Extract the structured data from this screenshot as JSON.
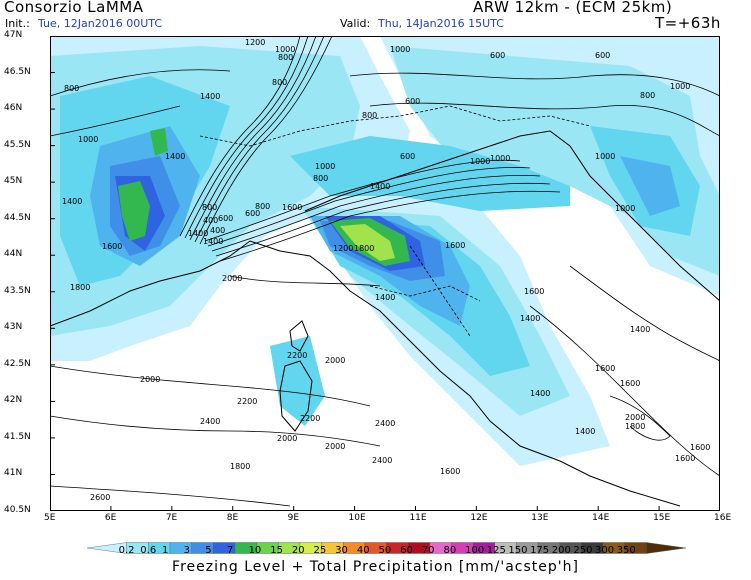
{
  "header": {
    "org": "Consorzio LaMMA",
    "model": "ARW 12km - (ECM 25km)",
    "init_label": "Init.:",
    "init_value": "Tue, 12Jan2016 00UTC",
    "valid_label": "Valid:",
    "valid_value": "Thu, 14Jan2016 15UTC",
    "lead": "T=+63h"
  },
  "axes": {
    "lon": [
      "5E",
      "6E",
      "7E",
      "8E",
      "9E",
      "10E",
      "11E",
      "12E",
      "13E",
      "14E",
      "15E",
      "16E"
    ],
    "lat": [
      "47N",
      "46.5N",
      "46N",
      "45.5N",
      "45N",
      "44.5N",
      "44N",
      "43.5N",
      "43N",
      "42.5N",
      "42N",
      "41.5N",
      "41N",
      "40.5N"
    ]
  },
  "contours": {
    "labels": [
      "1200",
      "1000",
      "800",
      "800",
      "1000",
      "800",
      "600",
      "600",
      "1000",
      "800",
      "1400",
      "600",
      "800",
      "1000",
      "1000",
      "1400",
      "800",
      "600",
      "1000",
      "1000",
      "1400",
      "1000",
      "1400",
      "1000",
      "800",
      "400",
      "600",
      "400",
      "600",
      "800",
      "1600",
      "1400",
      "1600",
      "1800",
      "2000",
      "1200",
      "1800",
      "1400",
      "1600",
      "1400",
      "1400",
      "1400",
      "1600",
      "2200",
      "2000",
      "2000",
      "2200",
      "2400",
      "2200",
      "2000",
      "2400",
      "2000",
      "2400",
      "1600",
      "1800",
      "2600",
      "1600",
      "1400",
      "2000",
      "1800",
      "1600",
      "1600",
      "1400",
      "1600"
    ]
  },
  "colorbar": {
    "ticks": [
      "0.2",
      "0.6",
      "1",
      "3",
      "5",
      "7",
      "10",
      "15",
      "20",
      "25",
      "30",
      "40",
      "50",
      "60",
      "70",
      "80",
      "100",
      "125",
      "150",
      "175",
      "200",
      "250",
      "300",
      "350"
    ],
    "colors": [
      "#c8f0ff",
      "#9ae6f5",
      "#63d6ef",
      "#4fb4ee",
      "#3f8fe8",
      "#2f63e0",
      "#33b84f",
      "#6cd24c",
      "#a2e24a",
      "#d7ee4a",
      "#f6c533",
      "#f38b27",
      "#e45625",
      "#c92628",
      "#b00f22",
      "#e46ac8",
      "#d43fb6",
      "#a81a9e",
      "#bdbdbd",
      "#9a9a9a",
      "#777777",
      "#555555",
      "#3a3a3a",
      "#8a5a17",
      "#6f4210",
      "#4e2d07"
    ]
  },
  "footer": "Freezing Level + Total Precipitation [mm/'acstep'h]"
}
